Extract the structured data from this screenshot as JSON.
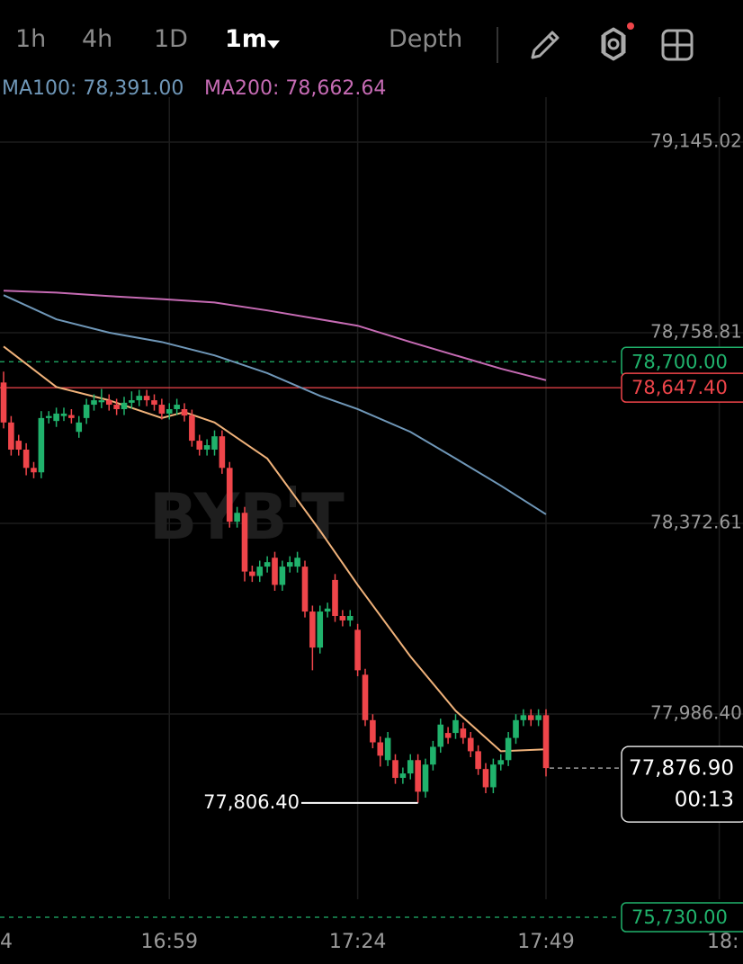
{
  "toolbar": {
    "intervals": [
      "1h",
      "4h",
      "1D",
      "1m"
    ],
    "depth": "Depth"
  },
  "chart_data": {
    "type": "candlestick",
    "watermark": [
      "BYB",
      "T"
    ],
    "legend": [
      "MA100: 78,391.00",
      "MA200: 78,662.64"
    ],
    "ylim": [
      77556.5,
      79236.1
    ],
    "yticks": [
      {
        "value": 79145.02,
        "label": "79,145.02"
      },
      {
        "value": 78758.81,
        "label": "78,758.81"
      },
      {
        "value": 78372.61,
        "label": "78,372.61"
      },
      {
        "value": 77986.4,
        "label": "77,986.40"
      }
    ],
    "xticks": [
      {
        "value": -3,
        "label": "4"
      },
      {
        "value": 22,
        "label": "16:59"
      },
      {
        "value": 47,
        "label": "17:24"
      },
      {
        "value": 72,
        "label": "17:49"
      },
      {
        "value": 95,
        "label": "18:"
      }
    ],
    "grid": true,
    "up_color": "#20b26c",
    "down_color": "#ef454a",
    "ohlc": [
      [
        78658,
        78680,
        78565,
        78577
      ],
      [
        78577,
        78590,
        78510,
        78522
      ],
      [
        78540,
        78552,
        78510,
        78522
      ],
      [
        78522,
        78535,
        78470,
        78485
      ],
      [
        78485,
        78497,
        78464,
        78476
      ],
      [
        78476,
        78600,
        78464,
        78586
      ],
      [
        78586,
        78600,
        78575,
        78590
      ],
      [
        78580,
        78607,
        78568,
        78595
      ],
      [
        78590,
        78607,
        78580,
        78595
      ],
      [
        78592,
        78604,
        78575,
        78586
      ],
      [
        78558,
        78590,
        78546,
        78577
      ],
      [
        78586,
        78625,
        78574,
        78613
      ],
      [
        78613,
        78634,
        78601,
        78622
      ],
      [
        78618,
        78645,
        78606,
        78622
      ],
      [
        78622,
        78634,
        78601,
        78613
      ],
      [
        78613,
        78625,
        78592,
        78604
      ],
      [
        78604,
        78629,
        78592,
        78617
      ],
      [
        78617,
        78640,
        78605,
        78622
      ],
      [
        78622,
        78643,
        78610,
        78631
      ],
      [
        78631,
        78643,
        78610,
        78622
      ],
      [
        78622,
        78634,
        78601,
        78613
      ],
      [
        78613,
        78625,
        78583,
        78595
      ],
      [
        78595,
        78616,
        78583,
        78604
      ],
      [
        78604,
        78625,
        78592,
        78613
      ],
      [
        78604,
        78616,
        78579,
        78591
      ],
      [
        78591,
        78603,
        78528,
        78540
      ],
      [
        78540,
        78552,
        78510,
        78522
      ],
      [
        78522,
        78543,
        78510,
        78531
      ],
      [
        78522,
        78561,
        78510,
        78549
      ],
      [
        78549,
        78561,
        78473,
        78485
      ],
      [
        78485,
        78497,
        78364,
        78376
      ],
      [
        78376,
        78406,
        78364,
        78394
      ],
      [
        78394,
        78406,
        78255,
        78275
      ],
      [
        78275,
        78287,
        78254,
        78266
      ],
      [
        78266,
        78297,
        78254,
        78285
      ],
      [
        78285,
        78306,
        78273,
        78294
      ],
      [
        78303,
        78315,
        78236,
        78248
      ],
      [
        78248,
        78297,
        78236,
        78285
      ],
      [
        78285,
        78306,
        78273,
        78294
      ],
      [
        78285,
        78315,
        78273,
        78303
      ],
      [
        78285,
        78297,
        78182,
        78194
      ],
      [
        78194,
        78206,
        78075,
        78121
      ],
      [
        78121,
        78206,
        78109,
        78194
      ],
      [
        78194,
        78212,
        78182,
        78200
      ],
      [
        78258,
        78270,
        78173,
        78185
      ],
      [
        78185,
        78197,
        78164,
        78176
      ],
      [
        78176,
        78197,
        78164,
        78185
      ],
      [
        78157,
        78169,
        78063,
        78075
      ],
      [
        78066,
        78078,
        77962,
        77974
      ],
      [
        77974,
        77986,
        77917,
        77929
      ],
      [
        77929,
        77941,
        77880,
        77902
      ],
      [
        77893,
        77950,
        77881,
        77938
      ],
      [
        77893,
        77905,
        77845,
        77857
      ],
      [
        77857,
        77878,
        77845,
        77866
      ],
      [
        77866,
        77905,
        77854,
        77893
      ],
      [
        77893,
        77905,
        77806.4,
        77829
      ],
      [
        77829,
        77896,
        77817,
        77884
      ],
      [
        77884,
        77932,
        77872,
        77920
      ],
      [
        77920,
        77977,
        77908,
        77965
      ],
      [
        77948,
        77960,
        77926,
        77938
      ],
      [
        77948,
        77986,
        77936,
        77974
      ],
      [
        77957,
        77969,
        77926,
        77938
      ],
      [
        77938,
        77950,
        77899,
        77911
      ],
      [
        77911,
        77923,
        77863,
        77875
      ],
      [
        77875,
        77887,
        77826,
        77838
      ],
      [
        77838,
        77896,
        77826,
        77884
      ],
      [
        77884,
        77905,
        77872,
        77893
      ],
      [
        77893,
        77950,
        77881,
        77938
      ],
      [
        77938,
        77986,
        77926,
        77974
      ],
      [
        77974,
        77996,
        77962,
        77984
      ],
      [
        77984,
        77996,
        77962,
        77974
      ],
      [
        77974,
        77996,
        77962,
        77984
      ],
      [
        77984,
        77996,
        77860,
        77876.9
      ]
    ],
    "series": [
      {
        "color": "#f0b27a",
        "x": [
          0,
          7,
          14,
          21,
          24,
          28,
          35,
          42,
          47,
          54,
          60,
          66,
          72
        ],
        "values": [
          78731,
          78649,
          78622,
          78586,
          78598,
          78577,
          78504,
          78358,
          78248,
          78103,
          77993,
          77911,
          77915
        ]
      },
      {
        "name": "MA100",
        "color": "#6f97b8",
        "x": [
          0,
          7,
          14,
          21,
          28,
          35,
          42,
          47,
          54,
          60,
          66,
          72
        ],
        "values": [
          78835,
          78786,
          78759,
          78740,
          78713,
          78677,
          78631,
          78604,
          78558,
          78504,
          78449,
          78391.0
        ]
      },
      {
        "name": "MA200",
        "color": "#c66bb4",
        "x": [
          0,
          7,
          14,
          21,
          28,
          35,
          42,
          47,
          54,
          60,
          66,
          72
        ],
        "values": [
          78844,
          78840,
          78833,
          78827,
          78820,
          78804,
          78786,
          78773,
          78740,
          78713,
          78686,
          78662.64
        ]
      }
    ],
    "price_lines": [
      {
        "value": 78700.0,
        "label": "78,700.00",
        "color": "#20b26c",
        "dashed": true
      },
      {
        "value": 78647.4,
        "label": "78,647.40",
        "color": "#ef454a",
        "dashed": false
      },
      {
        "value": 75730.0,
        "label": "75,730.00",
        "color": "#20b26c",
        "dashed": true
      }
    ],
    "low_marker": {
      "value": 77806.4,
      "label": "77,806.40",
      "index": 55
    },
    "last_price": {
      "value": 77876.9,
      "label": "77,876.90",
      "countdown": "00:13"
    }
  }
}
